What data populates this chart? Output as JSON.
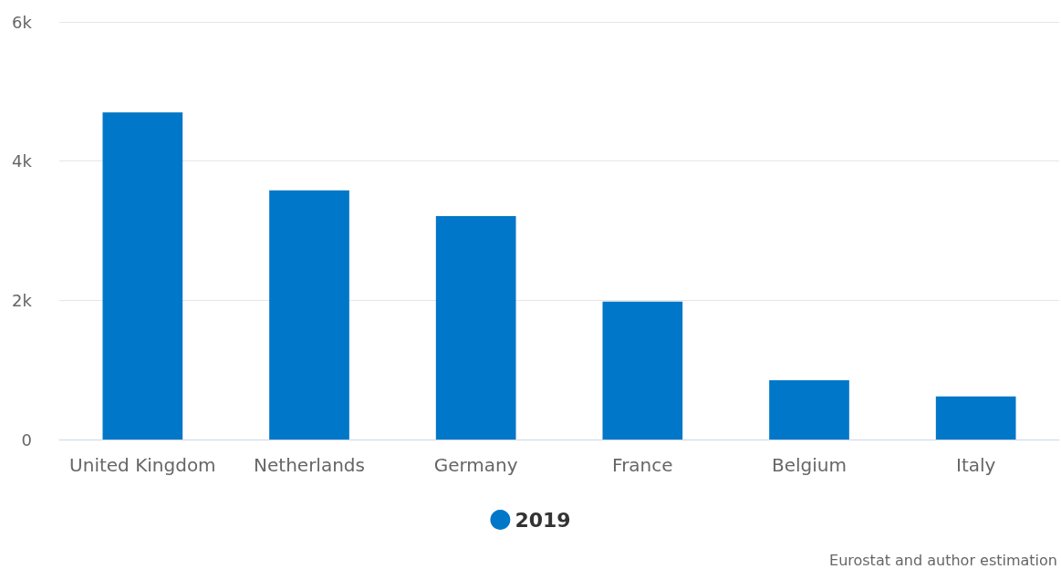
{
  "chart_data": {
    "type": "bar",
    "categories": [
      "United Kingdom",
      "Netherlands",
      "Germany",
      "France",
      "Belgium",
      "Italy"
    ],
    "series": [
      {
        "name": "2019",
        "color": "#0077c8",
        "values": [
          4700,
          3580,
          3210,
          1980,
          850,
          620
        ]
      }
    ],
    "ylim": [
      0,
      6000
    ],
    "yticks": [
      0,
      {
        "value": 2000,
        "label": "2k"
      },
      {
        "value": 4000,
        "label": "4k"
      },
      {
        "value": 6000,
        "label": "6k"
      }
    ],
    "grid": "y",
    "legend": "bottom",
    "marker": "circle",
    "annotations": [
      "Eurostat and author estimation"
    ]
  }
}
